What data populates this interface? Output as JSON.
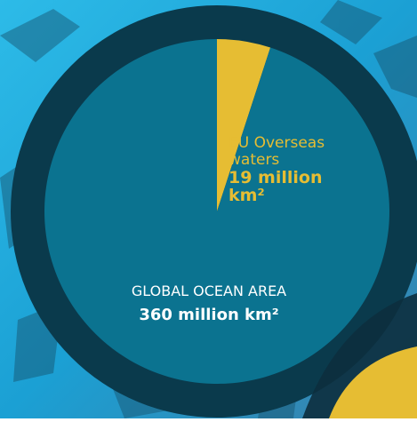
{
  "colors": {
    "ocean_slice": "#0b7390",
    "eu_slice": "#e6bd33",
    "ring": "#0a3a4c",
    "background": "#21aadd",
    "text_light": "#ffffff"
  },
  "chart_data": {
    "type": "pie",
    "title": "",
    "slices": [
      {
        "label": "EU Overseas waters",
        "value": 19,
        "unit": "million km²",
        "color": "#e6bd33"
      },
      {
        "label": "GLOBAL OCEAN AREA",
        "value": 360,
        "unit": "million km²",
        "color": "#0b7390"
      }
    ],
    "annotations": {
      "eu_label": "EU Overseas waters",
      "eu_value_line1": "19 million",
      "eu_value_line2": "km²",
      "global_label": "GLOBAL OCEAN AREA",
      "global_value": "360 million km²"
    }
  }
}
